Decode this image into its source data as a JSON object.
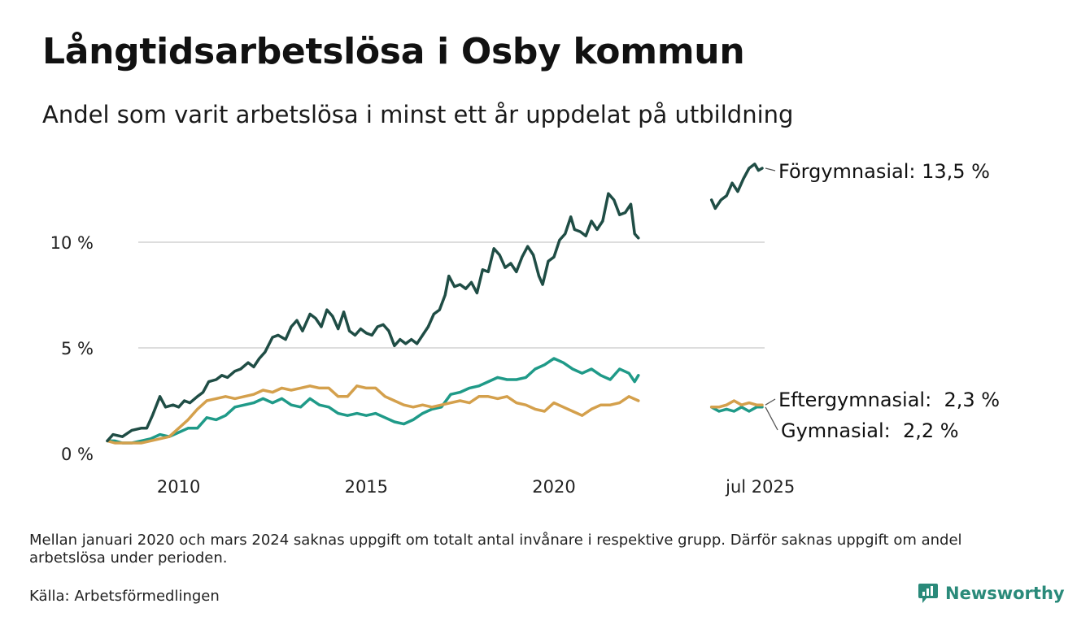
{
  "header": {
    "title": "Långtidsarbetslösa i Osby kommun",
    "subtitle": "Andel som varit arbetslösa i minst ett år uppdelat på utbildning"
  },
  "footer": {
    "note": "Mellan januari 2020 och mars 2024 saknas uppgift om totalt antal invånare i respektive grupp. Därför saknas uppgift om andel arbetslösa under perioden.",
    "source": "Källa: Arbetsförmedlingen",
    "brand": "Newsworthy"
  },
  "colors": {
    "forgymnasial": "#1f4d45",
    "gymnasial": "#1f9a88",
    "eftergymnasial": "#d4a04c",
    "grid": "#dddddd",
    "brand": "#2a8a7a"
  },
  "chart_data": {
    "type": "line",
    "x_unit": "year",
    "ylim": [
      0,
      15
    ],
    "y_ticks": [
      {
        "value": 0,
        "label": "0 %"
      },
      {
        "value": 5,
        "label": "5 %"
      },
      {
        "value": 10,
        "label": "10 %"
      }
    ],
    "x_ticks": [
      {
        "value": 2010,
        "label": "2010"
      },
      {
        "value": 2015,
        "label": "2015"
      },
      {
        "value": 2020,
        "label": "2020"
      },
      {
        "value": 2025.5,
        "label": "jul 2025"
      }
    ],
    "grid": true,
    "series": [
      {
        "key": "forgymnasial",
        "name": "Förgymnasial",
        "end_value_label": "13,5 %",
        "segments": [
          [
            [
              2008.1,
              0.6
            ],
            [
              2008.25,
              0.9
            ],
            [
              2008.5,
              0.8
            ],
            [
              2008.75,
              1.1
            ],
            [
              2009.0,
              1.2
            ],
            [
              2009.15,
              1.2
            ],
            [
              2009.3,
              1.8
            ],
            [
              2009.5,
              2.7
            ],
            [
              2009.65,
              2.2
            ],
            [
              2009.85,
              2.3
            ],
            [
              2010.0,
              2.2
            ],
            [
              2010.15,
              2.5
            ],
            [
              2010.3,
              2.4
            ],
            [
              2010.5,
              2.7
            ],
            [
              2010.65,
              2.9
            ],
            [
              2010.8,
              3.4
            ],
            [
              2011.0,
              3.5
            ],
            [
              2011.15,
              3.7
            ],
            [
              2011.3,
              3.6
            ],
            [
              2011.5,
              3.9
            ],
            [
              2011.65,
              4.0
            ],
            [
              2011.85,
              4.3
            ],
            [
              2012.0,
              4.1
            ],
            [
              2012.15,
              4.5
            ],
            [
              2012.3,
              4.8
            ],
            [
              2012.5,
              5.5
            ],
            [
              2012.65,
              5.6
            ],
            [
              2012.85,
              5.4
            ],
            [
              2013.0,
              6.0
            ],
            [
              2013.15,
              6.3
            ],
            [
              2013.3,
              5.8
            ],
            [
              2013.5,
              6.6
            ],
            [
              2013.65,
              6.4
            ],
            [
              2013.8,
              6.0
            ],
            [
              2013.95,
              6.8
            ],
            [
              2014.1,
              6.5
            ],
            [
              2014.25,
              5.9
            ],
            [
              2014.4,
              6.7
            ],
            [
              2014.55,
              5.8
            ],
            [
              2014.7,
              5.6
            ],
            [
              2014.85,
              5.9
            ],
            [
              2015.0,
              5.7
            ],
            [
              2015.15,
              5.6
            ],
            [
              2015.3,
              6.0
            ],
            [
              2015.45,
              6.1
            ],
            [
              2015.6,
              5.8
            ],
            [
              2015.75,
              5.1
            ],
            [
              2015.9,
              5.4
            ],
            [
              2016.05,
              5.2
            ],
            [
              2016.2,
              5.4
            ],
            [
              2016.35,
              5.2
            ],
            [
              2016.5,
              5.6
            ],
            [
              2016.65,
              6.0
            ],
            [
              2016.8,
              6.6
            ],
            [
              2016.95,
              6.8
            ],
            [
              2017.1,
              7.5
            ],
            [
              2017.2,
              8.4
            ],
            [
              2017.35,
              7.9
            ],
            [
              2017.5,
              8.0
            ],
            [
              2017.65,
              7.8
            ],
            [
              2017.8,
              8.1
            ],
            [
              2017.95,
              7.6
            ],
            [
              2018.1,
              8.7
            ],
            [
              2018.25,
              8.6
            ],
            [
              2018.4,
              9.7
            ],
            [
              2018.55,
              9.4
            ],
            [
              2018.7,
              8.8
            ],
            [
              2018.85,
              9.0
            ],
            [
              2019.0,
              8.6
            ],
            [
              2019.15,
              9.3
            ],
            [
              2019.3,
              9.8
            ],
            [
              2019.45,
              9.4
            ],
            [
              2019.6,
              8.4
            ],
            [
              2019.7,
              8.0
            ],
            [
              2019.85,
              9.1
            ],
            [
              2020.0,
              9.3
            ],
            [
              2020.15,
              10.1
            ],
            [
              2020.3,
              10.4
            ],
            [
              2020.45,
              11.2
            ],
            [
              2020.55,
              10.6
            ],
            [
              2020.7,
              10.5
            ],
            [
              2020.85,
              10.3
            ],
            [
              2021.0,
              11.0
            ],
            [
              2021.15,
              10.6
            ],
            [
              2021.3,
              11.0
            ],
            [
              2021.45,
              12.3
            ],
            [
              2021.6,
              12.0
            ],
            [
              2021.75,
              11.3
            ],
            [
              2021.9,
              11.4
            ],
            [
              2022.05,
              11.8
            ],
            [
              2022.15,
              10.4
            ],
            [
              2022.25,
              10.2
            ]
          ],
          [
            [
              2024.2,
              12.0
            ],
            [
              2024.3,
              11.6
            ],
            [
              2024.45,
              12.0
            ],
            [
              2024.6,
              12.2
            ],
            [
              2024.75,
              12.8
            ],
            [
              2024.9,
              12.4
            ],
            [
              2025.05,
              13.0
            ],
            [
              2025.2,
              13.5
            ],
            [
              2025.35,
              13.7
            ],
            [
              2025.45,
              13.4
            ],
            [
              2025.55,
              13.5
            ]
          ]
        ]
      },
      {
        "key": "gymnasial",
        "name": "Gymnasial",
        "end_value_label": "2,2 %",
        "segments": [
          [
            [
              2008.1,
              0.6
            ],
            [
              2008.3,
              0.6
            ],
            [
              2008.5,
              0.5
            ],
            [
              2008.75,
              0.5
            ],
            [
              2009.0,
              0.6
            ],
            [
              2009.25,
              0.7
            ],
            [
              2009.5,
              0.9
            ],
            [
              2009.75,
              0.8
            ],
            [
              2010.0,
              1.0
            ],
            [
              2010.25,
              1.2
            ],
            [
              2010.5,
              1.2
            ],
            [
              2010.75,
              1.7
            ],
            [
              2011.0,
              1.6
            ],
            [
              2011.25,
              1.8
            ],
            [
              2011.5,
              2.2
            ],
            [
              2011.75,
              2.3
            ],
            [
              2012.0,
              2.4
            ],
            [
              2012.25,
              2.6
            ],
            [
              2012.5,
              2.4
            ],
            [
              2012.75,
              2.6
            ],
            [
              2013.0,
              2.3
            ],
            [
              2013.25,
              2.2
            ],
            [
              2013.5,
              2.6
            ],
            [
              2013.75,
              2.3
            ],
            [
              2014.0,
              2.2
            ],
            [
              2014.25,
              1.9
            ],
            [
              2014.5,
              1.8
            ],
            [
              2014.75,
              1.9
            ],
            [
              2015.0,
              1.8
            ],
            [
              2015.25,
              1.9
            ],
            [
              2015.5,
              1.7
            ],
            [
              2015.75,
              1.5
            ],
            [
              2016.0,
              1.4
            ],
            [
              2016.25,
              1.6
            ],
            [
              2016.5,
              1.9
            ],
            [
              2016.75,
              2.1
            ],
            [
              2017.0,
              2.2
            ],
            [
              2017.25,
              2.8
            ],
            [
              2017.5,
              2.9
            ],
            [
              2017.75,
              3.1
            ],
            [
              2018.0,
              3.2
            ],
            [
              2018.25,
              3.4
            ],
            [
              2018.5,
              3.6
            ],
            [
              2018.75,
              3.5
            ],
            [
              2019.0,
              3.5
            ],
            [
              2019.25,
              3.6
            ],
            [
              2019.5,
              4.0
            ],
            [
              2019.75,
              4.2
            ],
            [
              2020.0,
              4.5
            ],
            [
              2020.25,
              4.3
            ],
            [
              2020.5,
              4.0
            ],
            [
              2020.75,
              3.8
            ],
            [
              2021.0,
              4.0
            ],
            [
              2021.25,
              3.7
            ],
            [
              2021.5,
              3.5
            ],
            [
              2021.75,
              4.0
            ],
            [
              2022.0,
              3.8
            ],
            [
              2022.15,
              3.4
            ],
            [
              2022.25,
              3.7
            ]
          ],
          [
            [
              2024.2,
              2.2
            ],
            [
              2024.4,
              2.0
            ],
            [
              2024.6,
              2.1
            ],
            [
              2024.8,
              2.0
            ],
            [
              2025.0,
              2.2
            ],
            [
              2025.2,
              2.0
            ],
            [
              2025.4,
              2.2
            ],
            [
              2025.55,
              2.2
            ]
          ]
        ]
      },
      {
        "key": "eftergymnasial",
        "name": "Eftergymnasial",
        "end_value_label": "2,3 %",
        "segments": [
          [
            [
              2008.1,
              0.6
            ],
            [
              2008.3,
              0.5
            ],
            [
              2008.5,
              0.5
            ],
            [
              2008.75,
              0.5
            ],
            [
              2009.0,
              0.5
            ],
            [
              2009.25,
              0.6
            ],
            [
              2009.5,
              0.7
            ],
            [
              2009.75,
              0.8
            ],
            [
              2010.0,
              1.2
            ],
            [
              2010.25,
              1.6
            ],
            [
              2010.5,
              2.1
            ],
            [
              2010.75,
              2.5
            ],
            [
              2011.0,
              2.6
            ],
            [
              2011.25,
              2.7
            ],
            [
              2011.5,
              2.6
            ],
            [
              2011.75,
              2.7
            ],
            [
              2012.0,
              2.8
            ],
            [
              2012.25,
              3.0
            ],
            [
              2012.5,
              2.9
            ],
            [
              2012.75,
              3.1
            ],
            [
              2013.0,
              3.0
            ],
            [
              2013.25,
              3.1
            ],
            [
              2013.5,
              3.2
            ],
            [
              2013.75,
              3.1
            ],
            [
              2014.0,
              3.1
            ],
            [
              2014.25,
              2.7
            ],
            [
              2014.5,
              2.7
            ],
            [
              2014.75,
              3.2
            ],
            [
              2015.0,
              3.1
            ],
            [
              2015.25,
              3.1
            ],
            [
              2015.5,
              2.7
            ],
            [
              2015.75,
              2.5
            ],
            [
              2016.0,
              2.3
            ],
            [
              2016.25,
              2.2
            ],
            [
              2016.5,
              2.3
            ],
            [
              2016.75,
              2.2
            ],
            [
              2017.0,
              2.3
            ],
            [
              2017.25,
              2.4
            ],
            [
              2017.5,
              2.5
            ],
            [
              2017.75,
              2.4
            ],
            [
              2018.0,
              2.7
            ],
            [
              2018.25,
              2.7
            ],
            [
              2018.5,
              2.6
            ],
            [
              2018.75,
              2.7
            ],
            [
              2019.0,
              2.4
            ],
            [
              2019.25,
              2.3
            ],
            [
              2019.5,
              2.1
            ],
            [
              2019.75,
              2.0
            ],
            [
              2020.0,
              2.4
            ],
            [
              2020.25,
              2.2
            ],
            [
              2020.5,
              2.0
            ],
            [
              2020.75,
              1.8
            ],
            [
              2021.0,
              2.1
            ],
            [
              2021.25,
              2.3
            ],
            [
              2021.5,
              2.3
            ],
            [
              2021.75,
              2.4
            ],
            [
              2022.0,
              2.7
            ],
            [
              2022.25,
              2.5
            ]
          ],
          [
            [
              2024.2,
              2.2
            ],
            [
              2024.4,
              2.2
            ],
            [
              2024.6,
              2.3
            ],
            [
              2024.8,
              2.5
            ],
            [
              2025.0,
              2.3
            ],
            [
              2025.2,
              2.4
            ],
            [
              2025.4,
              2.3
            ],
            [
              2025.55,
              2.3
            ]
          ]
        ]
      }
    ]
  }
}
